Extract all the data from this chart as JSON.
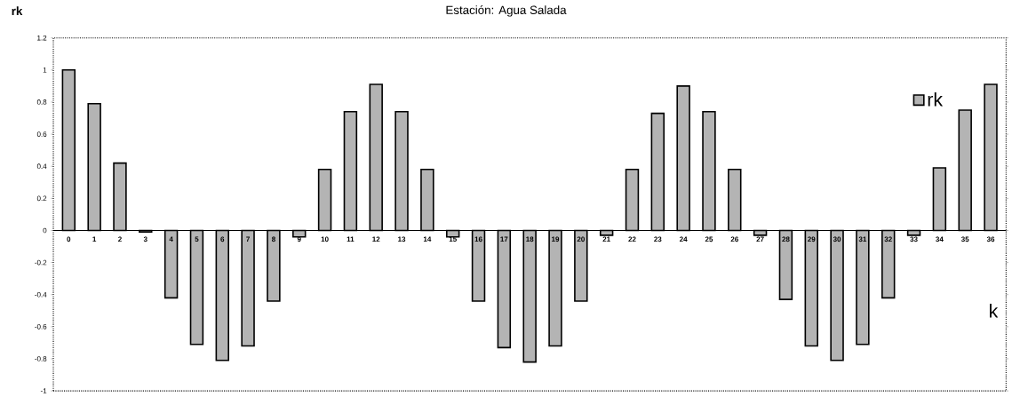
{
  "chart_data": {
    "type": "bar",
    "title": "Estación: Agua Salada",
    "xlabel": "k",
    "ylabel": "rk",
    "categories": [
      "0",
      "1",
      "2",
      "3",
      "4",
      "5",
      "6",
      "7",
      "8",
      "9",
      "10",
      "11",
      "12",
      "13",
      "14",
      "15",
      "16",
      "17",
      "18",
      "19",
      "20",
      "21",
      "22",
      "23",
      "24",
      "25",
      "26",
      "27",
      "28",
      "29",
      "30",
      "31",
      "32",
      "33",
      "34",
      "35",
      "36"
    ],
    "series": [
      {
        "name": "rk",
        "color": "#b4b4b4",
        "values": [
          1.0,
          0.79,
          0.42,
          -0.01,
          -0.42,
          -0.71,
          -0.81,
          -0.72,
          -0.44,
          -0.04,
          0.38,
          0.74,
          0.91,
          0.74,
          0.38,
          -0.04,
          -0.44,
          -0.73,
          -0.82,
          -0.72,
          -0.44,
          -0.03,
          0.38,
          0.73,
          0.9,
          0.74,
          0.38,
          -0.03,
          -0.43,
          -0.72,
          -0.81,
          -0.71,
          -0.42,
          -0.03,
          0.39,
          0.75,
          0.91
        ]
      }
    ],
    "ylim": [
      -1,
      1.2
    ],
    "yticks": [
      -1,
      -0.8,
      -0.6,
      -0.4,
      -0.2,
      0,
      0.2,
      0.4,
      0.6,
      0.8,
      1,
      1.2
    ],
    "legend": "top right",
    "grid": false
  }
}
